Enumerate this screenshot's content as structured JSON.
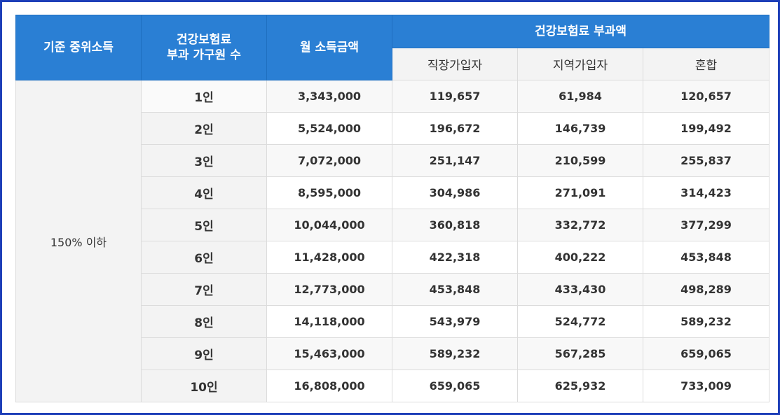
{
  "table": {
    "headers": {
      "criterion": "기준 중위소득",
      "household_line1": "건강보험료",
      "household_line2": "부과 가구원 수",
      "monthly_income": "월 소득금액",
      "premium_group": "건강보험료 부과액",
      "sub": [
        "직장가입자",
        "지역가입자",
        "혼합"
      ]
    },
    "criterion_value": "150% 이하",
    "rows": [
      {
        "n": "1인",
        "income": "3,343,000",
        "workplace": "119,657",
        "regional": "61,984",
        "mixed": "120,657"
      },
      {
        "n": "2인",
        "income": "5,524,000",
        "workplace": "196,672",
        "regional": "146,739",
        "mixed": "199,492"
      },
      {
        "n": "3인",
        "income": "7,072,000",
        "workplace": "251,147",
        "regional": "210,599",
        "mixed": "255,837"
      },
      {
        "n": "4인",
        "income": "8,595,000",
        "workplace": "304,986",
        "regional": "271,091",
        "mixed": "314,423"
      },
      {
        "n": "5인",
        "income": "10,044,000",
        "workplace": "360,818",
        "regional": "332,772",
        "mixed": "377,299"
      },
      {
        "n": "6인",
        "income": "11,428,000",
        "workplace": "422,318",
        "regional": "400,222",
        "mixed": "453,848"
      },
      {
        "n": "7인",
        "income": "12,773,000",
        "workplace": "453,848",
        "regional": "433,430",
        "mixed": "498,289"
      },
      {
        "n": "8인",
        "income": "14,118,000",
        "workplace": "543,979",
        "regional": "524,772",
        "mixed": "589,232"
      },
      {
        "n": "9인",
        "income": "15,463,000",
        "workplace": "589,232",
        "regional": "567,285",
        "mixed": "659,065"
      },
      {
        "n": "10인",
        "income": "16,808,000",
        "workplace": "659,065",
        "regional": "625,932",
        "mixed": "733,009"
      }
    ]
  }
}
